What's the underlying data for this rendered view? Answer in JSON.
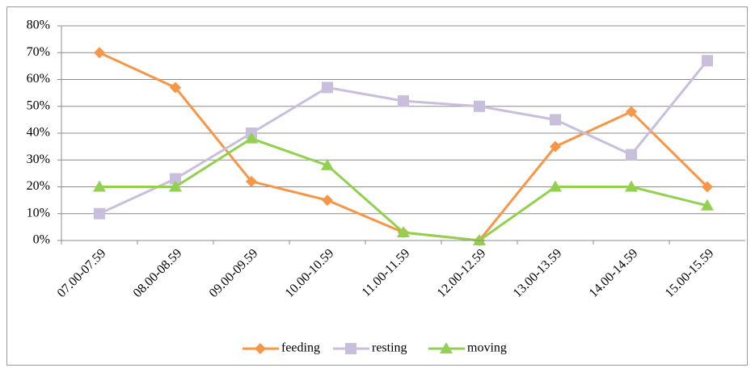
{
  "chart_data": {
    "type": "line",
    "categories": [
      "07.00-07.59",
      "08.00-08.59",
      "09.00-09.59",
      "10.00-10.59",
      "11.00-11.59",
      "12.00-12.59",
      "13.00-13.59",
      "14.00-14.59",
      "15.00-15.59"
    ],
    "series": [
      {
        "name": "feeding",
        "color": "#f79646",
        "marker": "diamond",
        "values": [
          70,
          57,
          22,
          15,
          3,
          0,
          35,
          48,
          20
        ]
      },
      {
        "name": "resting",
        "color": "#c9bedc",
        "marker": "square",
        "values": [
          10,
          23,
          40,
          57,
          52,
          50,
          45,
          32,
          67
        ]
      },
      {
        "name": "moving",
        "color": "#92d050",
        "marker": "triangle",
        "values": [
          20,
          20,
          38,
          28,
          3,
          0,
          20,
          20,
          13
        ]
      }
    ],
    "ylim": [
      0,
      80
    ],
    "yticks": [
      {
        "value": 0,
        "label": "0%"
      },
      {
        "value": 10,
        "label": "10%"
      },
      {
        "value": 20,
        "label": "20%"
      },
      {
        "value": 30,
        "label": "30%"
      },
      {
        "value": 40,
        "label": "40%"
      },
      {
        "value": 50,
        "label": "50%"
      },
      {
        "value": 60,
        "label": "60%"
      },
      {
        "value": 70,
        "label": "70%"
      },
      {
        "value": 80,
        "label": "80%"
      }
    ],
    "grid": true,
    "legend": "bottom"
  }
}
